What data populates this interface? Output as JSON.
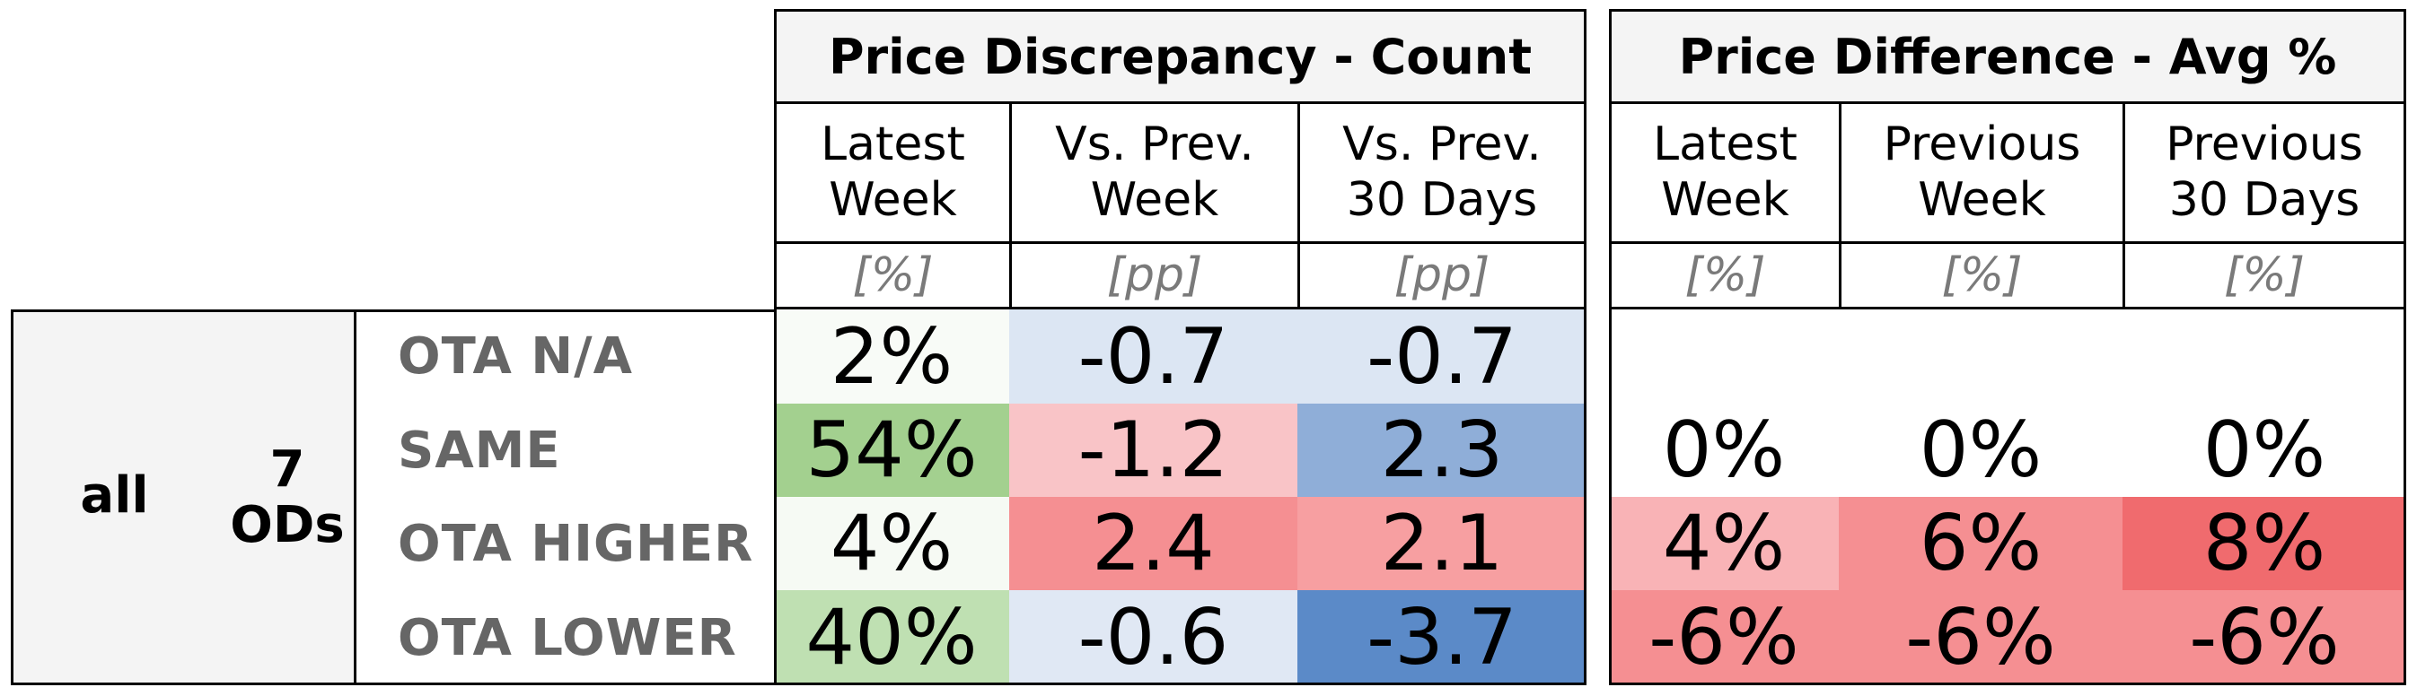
{
  "chart_data": {
    "type": "table",
    "sections": [
      {
        "title": "Price Discrepancy - Count",
        "columns": [
          {
            "label": "Latest\nWeek",
            "unit": "[%]"
          },
          {
            "label": "Vs. Prev.\nWeek",
            "unit": "[pp]"
          },
          {
            "label": "Vs. Prev.\n30 Days",
            "unit": "[pp]"
          }
        ]
      },
      {
        "title": "Price Difference - Avg %",
        "columns": [
          {
            "label": "Latest\nWeek",
            "unit": "[%]"
          },
          {
            "label": "Previous\nWeek",
            "unit": "[%]"
          },
          {
            "label": "Previous\n30 Days",
            "unit": "[%]"
          }
        ]
      }
    ],
    "group": {
      "label": "all",
      "sublabel": "7\nODs"
    },
    "rows": [
      {
        "label": "OTA N/A",
        "count": [
          {
            "text": "2%",
            "color": "#f8fbf7"
          },
          {
            "text": "-0.7",
            "color": "#dce6f3"
          },
          {
            "text": "-0.7",
            "color": "#dce6f3"
          }
        ],
        "avg": [
          {
            "text": "",
            "color": "#ffffff"
          },
          {
            "text": "",
            "color": "#ffffff"
          },
          {
            "text": "",
            "color": "#ffffff"
          }
        ]
      },
      {
        "label": "SAME",
        "count": [
          {
            "text": "54%",
            "color": "#a3d08f"
          },
          {
            "text": "-1.2",
            "color": "#f9c4c7"
          },
          {
            "text": "2.3",
            "color": "#8faed8"
          }
        ],
        "avg": [
          {
            "text": "0%",
            "color": "#ffffff"
          },
          {
            "text": "0%",
            "color": "#ffffff"
          },
          {
            "text": "0%",
            "color": "#ffffff"
          }
        ]
      },
      {
        "label": "OTA HIGHER",
        "count": [
          {
            "text": "4%",
            "color": "#f6faf4"
          },
          {
            "text": "2.4",
            "color": "#f58f92"
          },
          {
            "text": "2.1",
            "color": "#f79fa1"
          }
        ],
        "avg": [
          {
            "text": "4%",
            "color": "#f9b3b6"
          },
          {
            "text": "6%",
            "color": "#f58f92"
          },
          {
            "text": "8%",
            "color": "#f06b6e"
          }
        ]
      },
      {
        "label": "OTA LOWER",
        "count": [
          {
            "text": "40%",
            "color": "#bfe0b2"
          },
          {
            "text": "-0.6",
            "color": "#e0e8f4"
          },
          {
            "text": "-3.7",
            "color": "#5b8ac8"
          }
        ],
        "avg": [
          {
            "text": "-6%",
            "color": "#f58f92"
          },
          {
            "text": "-6%",
            "color": "#f58f92"
          },
          {
            "text": "-6%",
            "color": "#f58f92"
          }
        ]
      }
    ]
  }
}
